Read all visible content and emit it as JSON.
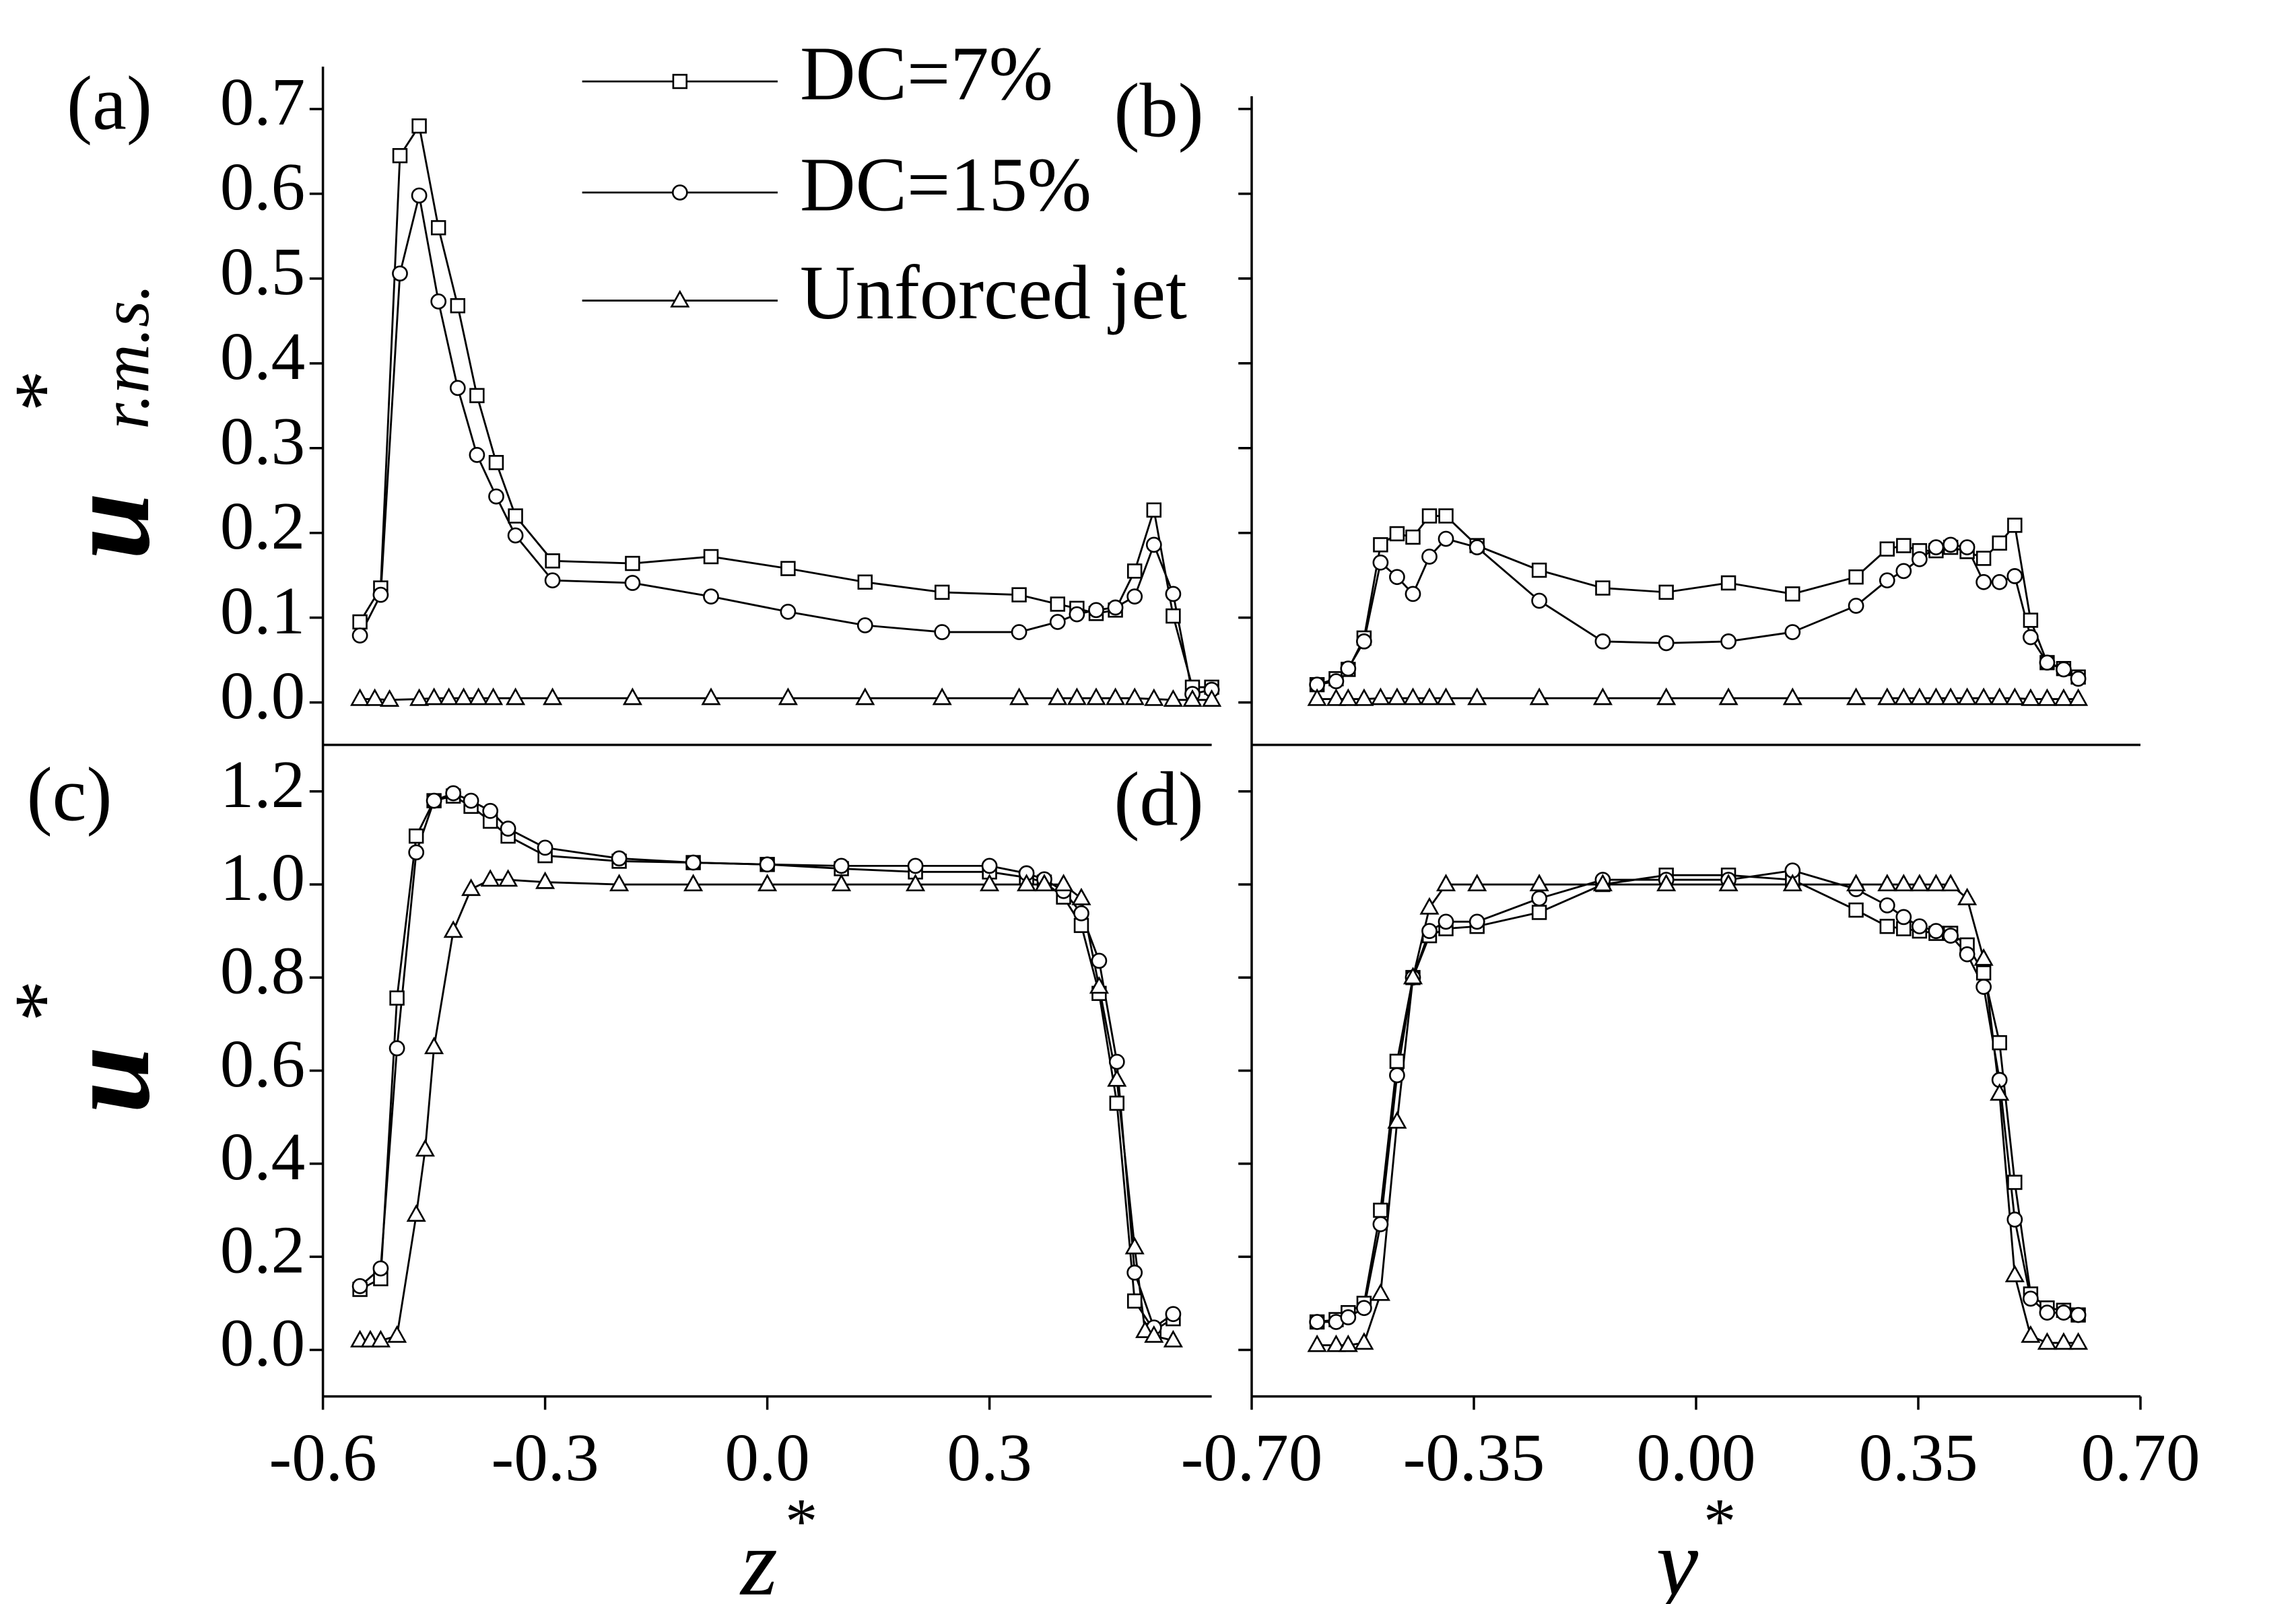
{
  "chart_data": [
    {
      "type": "line",
      "panel_label": "(a)",
      "ylabel": "u",
      "ylabel_sup": "*",
      "ylabel_sub": "r.m.s.",
      "legend": "top-center",
      "xlim": [
        -0.6,
        0.6
      ],
      "ylim": [
        -0.05,
        0.75
      ],
      "yticks": [
        {
          "value": 0,
          "label": "0.0"
        },
        0.1,
        0.2,
        0.3,
        0.4,
        0.5,
        0.6,
        0.7
      ],
      "series": [
        {
          "name": "DC=7%",
          "color": "#000000",
          "marker": "square",
          "x": [
            -0.55,
            -0.522,
            -0.496,
            -0.47,
            -0.444,
            -0.418,
            -0.392,
            -0.366,
            -0.34,
            -0.29,
            -0.182,
            -0.076,
            0.028,
            0.132,
            0.236,
            0.34,
            0.392,
            0.418,
            0.444,
            0.47,
            0.496,
            0.522,
            0.548,
            0.574,
            0.6
          ],
          "values": [
            0.095,
            0.135,
            0.645,
            0.68,
            0.56,
            0.468,
            0.362,
            0.283,
            0.22,
            0.167,
            0.164,
            0.172,
            0.158,
            0.142,
            0.13,
            0.127,
            0.116,
            0.111,
            0.105,
            0.109,
            0.155,
            0.227,
            0.102,
            0.018,
            0.018
          ]
        },
        {
          "name": "DC=15%",
          "color": "#000000",
          "marker": "circle",
          "x": [
            -0.55,
            -0.522,
            -0.496,
            -0.47,
            -0.444,
            -0.418,
            -0.392,
            -0.366,
            -0.34,
            -0.29,
            -0.182,
            -0.076,
            0.028,
            0.132,
            0.236,
            0.34,
            0.392,
            0.418,
            0.444,
            0.47,
            0.496,
            0.522,
            0.548,
            0.574,
            0.6
          ],
          "values": [
            0.079,
            0.127,
            0.506,
            0.598,
            0.473,
            0.371,
            0.292,
            0.243,
            0.197,
            0.144,
            0.141,
            0.125,
            0.107,
            0.091,
            0.083,
            0.083,
            0.095,
            0.104,
            0.109,
            0.112,
            0.125,
            0.186,
            0.128,
            0.01,
            0.015
          ]
        },
        {
          "name": "Unforced jet",
          "color": "#000000",
          "marker": "triangle",
          "x": [
            -0.55,
            -0.53,
            -0.51,
            -0.47,
            -0.45,
            -0.43,
            -0.41,
            -0.39,
            -0.37,
            -0.34,
            -0.29,
            -0.182,
            -0.076,
            0.028,
            0.132,
            0.236,
            0.34,
            0.392,
            0.418,
            0.444,
            0.47,
            0.496,
            0.522,
            0.548,
            0.574,
            0.6
          ],
          "values": [
            0.004,
            0.004,
            0.003,
            0.004,
            0.005,
            0.005,
            0.005,
            0.005,
            0.005,
            0.005,
            0.005,
            0.005,
            0.005,
            0.005,
            0.005,
            0.005,
            0.005,
            0.005,
            0.005,
            0.005,
            0.005,
            0.005,
            0.004,
            0.003,
            0.003,
            0.003
          ]
        }
      ]
    },
    {
      "type": "line",
      "panel_label": "(b)",
      "xlim": [
        -0.7,
        0.7
      ],
      "ylim": [
        -0.05,
        0.715
      ],
      "yticks": [
        0,
        0.1,
        0.2,
        0.3,
        0.4,
        0.5,
        0.6,
        0.7
      ],
      "ytick_labels": false,
      "series": [
        {
          "color": "#000000",
          "marker": "square",
          "x": [
            -0.597,
            -0.567,
            -0.548,
            -0.523,
            -0.497,
            -0.471,
            -0.446,
            -0.42,
            -0.394,
            -0.345,
            -0.247,
            -0.147,
            -0.047,
            0.051,
            0.152,
            0.252,
            0.301,
            0.327,
            0.352,
            0.378,
            0.401,
            0.427,
            0.453,
            0.478,
            0.502,
            0.527,
            0.553,
            0.579,
            0.602
          ],
          "values": [
            0.021,
            0.028,
            0.039,
            0.076,
            0.186,
            0.199,
            0.195,
            0.22,
            0.22,
            0.185,
            0.156,
            0.135,
            0.13,
            0.141,
            0.128,
            0.148,
            0.181,
            0.185,
            0.179,
            0.179,
            0.183,
            0.178,
            0.17,
            0.188,
            0.209,
            0.097,
            0.047,
            0.04,
            0.03
          ]
        },
        {
          "color": "#000000",
          "marker": "circle",
          "x": [
            -0.597,
            -0.567,
            -0.548,
            -0.523,
            -0.497,
            -0.471,
            -0.446,
            -0.42,
            -0.394,
            -0.345,
            -0.247,
            -0.147,
            -0.047,
            0.051,
            0.152,
            0.252,
            0.301,
            0.327,
            0.352,
            0.378,
            0.401,
            0.427,
            0.453,
            0.478,
            0.502,
            0.527,
            0.553,
            0.579,
            0.602
          ],
          "values": [
            0.021,
            0.025,
            0.04,
            0.072,
            0.165,
            0.148,
            0.128,
            0.172,
            0.193,
            0.183,
            0.12,
            0.072,
            0.07,
            0.072,
            0.083,
            0.114,
            0.144,
            0.155,
            0.169,
            0.183,
            0.186,
            0.183,
            0.142,
            0.142,
            0.149,
            0.077,
            0.047,
            0.039,
            0.028
          ]
        },
        {
          "color": "#000000",
          "marker": "triangle",
          "x": [
            -0.597,
            -0.567,
            -0.548,
            -0.523,
            -0.497,
            -0.471,
            -0.446,
            -0.42,
            -0.394,
            -0.345,
            -0.247,
            -0.147,
            -0.047,
            0.051,
            0.152,
            0.252,
            0.301,
            0.327,
            0.352,
            0.378,
            0.401,
            0.427,
            0.453,
            0.478,
            0.502,
            0.527,
            0.553,
            0.579,
            0.602
          ],
          "values": [
            0.004,
            0.004,
            0.004,
            0.004,
            0.005,
            0.005,
            0.005,
            0.005,
            0.005,
            0.005,
            0.005,
            0.005,
            0.005,
            0.005,
            0.005,
            0.005,
            0.005,
            0.005,
            0.005,
            0.005,
            0.005,
            0.005,
            0.005,
            0.005,
            0.005,
            0.004,
            0.004,
            0.004,
            0.004
          ]
        }
      ]
    },
    {
      "type": "line",
      "panel_label": "(c)",
      "ylabel": "u",
      "ylabel_sup": "*",
      "xlabel": "z",
      "xlabel_sup": "*",
      "xlim": [
        -0.6,
        0.6
      ],
      "ylim": [
        -0.1,
        1.3
      ],
      "xticks": [
        -0.6,
        -0.3,
        {
          "value": 0,
          "label": "0.0"
        },
        0.3
      ],
      "yticks": [
        {
          "value": 0,
          "label": "0.0"
        },
        0.2,
        0.4,
        0.6,
        0.8,
        {
          "value": 1,
          "label": "1.0"
        },
        1.2
      ],
      "series": [
        {
          "color": "#000000",
          "marker": "square",
          "x": [
            -0.55,
            -0.522,
            -0.5,
            -0.474,
            -0.45,
            -0.424,
            -0.4,
            -0.374,
            -0.35,
            -0.3,
            -0.2,
            -0.1,
            0,
            0.1,
            0.2,
            0.3,
            0.35,
            0.374,
            0.4,
            0.424,
            0.448,
            0.472,
            0.496,
            0.522,
            0.548
          ],
          "values": [
            0.13,
            0.153,
            0.756,
            1.104,
            1.18,
            1.19,
            1.168,
            1.136,
            1.104,
            1.062,
            1.05,
            1.047,
            1.043,
            1.034,
            1.027,
            1.027,
            1.015,
            1.005,
            0.973,
            0.912,
            0.766,
            0.53,
            0.105,
            0.042,
            0.067
          ]
        },
        {
          "color": "#000000",
          "marker": "circle",
          "x": [
            -0.55,
            -0.522,
            -0.5,
            -0.474,
            -0.45,
            -0.424,
            -0.4,
            -0.374,
            -0.35,
            -0.3,
            -0.2,
            -0.1,
            0,
            0.1,
            0.2,
            0.3,
            0.35,
            0.374,
            0.4,
            0.424,
            0.448,
            0.472,
            0.496,
            0.522,
            0.548
          ],
          "values": [
            0.137,
            0.175,
            0.648,
            1.069,
            1.18,
            1.196,
            1.18,
            1.158,
            1.12,
            1.079,
            1.056,
            1.047,
            1.043,
            1.04,
            1.04,
            1.04,
            1.024,
            1.011,
            0.986,
            0.938,
            0.836,
            0.619,
            0.166,
            0.048,
            0.077
          ]
        },
        {
          "color": "#000000",
          "marker": "triangle",
          "x": [
            -0.55,
            -0.536,
            -0.522,
            -0.5,
            -0.474,
            -0.462,
            -0.45,
            -0.424,
            -0.4,
            -0.374,
            -0.35,
            -0.3,
            -0.2,
            -0.1,
            0,
            0.1,
            0.2,
            0.3,
            0.35,
            0.374,
            0.4,
            0.424,
            0.448,
            0.472,
            0.496,
            0.51,
            0.522,
            0.548
          ],
          "values": [
            0.02,
            0.02,
            0.02,
            0.03,
            0.29,
            0.43,
            0.65,
            0.9,
            0.99,
            1.01,
            1.01,
            1.005,
            1.0,
            1.0,
            1.0,
            1.0,
            1.0,
            1.0,
            1.0,
            1.0,
            1.0,
            0.97,
            0.78,
            0.58,
            0.22,
            0.04,
            0.03,
            0.02
          ]
        }
      ]
    },
    {
      "type": "line",
      "panel_label": "(d)",
      "xlabel": "y",
      "xlabel_sup": "*",
      "xlim": [
        -0.7,
        0.7
      ],
      "ylim": [
        -0.1,
        1.3
      ],
      "xticks": [
        {
          "value": -0.7,
          "label": "-0.70"
        },
        -0.35,
        {
          "value": 0,
          "label": "0.00"
        },
        0.35,
        {
          "value": 0.7,
          "label": "0.70"
        }
      ],
      "yticks": [
        0,
        0.2,
        0.4,
        0.6,
        0.8,
        1,
        1.2
      ],
      "ytick_labels": false,
      "series": [
        {
          "color": "#000000",
          "marker": "square",
          "x": [
            -0.597,
            -0.567,
            -0.548,
            -0.523,
            -0.497,
            -0.471,
            -0.446,
            -0.42,
            -0.394,
            -0.345,
            -0.247,
            -0.147,
            -0.047,
            0.051,
            0.152,
            0.252,
            0.301,
            0.327,
            0.352,
            0.378,
            0.401,
            0.427,
            0.453,
            0.478,
            0.502,
            0.527,
            0.553,
            0.579,
            0.602
          ],
          "values": [
            0.06,
            0.065,
            0.08,
            0.1,
            0.3,
            0.62,
            0.8,
            0.89,
            0.905,
            0.91,
            0.94,
            1.0,
            1.02,
            1.02,
            1.01,
            0.945,
            0.91,
            0.905,
            0.9,
            0.895,
            0.895,
            0.87,
            0.81,
            0.66,
            0.36,
            0.12,
            0.09,
            0.085,
            0.075
          ]
        },
        {
          "color": "#000000",
          "marker": "circle",
          "x": [
            -0.597,
            -0.567,
            -0.548,
            -0.523,
            -0.497,
            -0.471,
            -0.446,
            -0.42,
            -0.394,
            -0.345,
            -0.247,
            -0.147,
            -0.047,
            0.051,
            0.152,
            0.252,
            0.301,
            0.327,
            0.352,
            0.378,
            0.401,
            0.427,
            0.453,
            0.478,
            0.502,
            0.527,
            0.553,
            0.579,
            0.602
          ],
          "values": [
            0.06,
            0.06,
            0.07,
            0.09,
            0.27,
            0.59,
            0.8,
            0.9,
            0.92,
            0.92,
            0.97,
            1.01,
            1.01,
            1.01,
            1.03,
            0.99,
            0.955,
            0.93,
            0.91,
            0.9,
            0.89,
            0.85,
            0.78,
            0.58,
            0.28,
            0.11,
            0.08,
            0.08,
            0.075
          ]
        },
        {
          "color": "#000000",
          "marker": "triangle",
          "x": [
            -0.597,
            -0.567,
            -0.548,
            -0.523,
            -0.497,
            -0.471,
            -0.446,
            -0.42,
            -0.394,
            -0.345,
            -0.247,
            -0.147,
            -0.047,
            0.051,
            0.152,
            0.252,
            0.301,
            0.327,
            0.352,
            0.378,
            0.401,
            0.427,
            0.453,
            0.478,
            0.502,
            0.527,
            0.553,
            0.579,
            0.602
          ],
          "values": [
            0.01,
            0.01,
            0.01,
            0.015,
            0.12,
            0.49,
            0.8,
            0.95,
            1.0,
            1.0,
            1.0,
            1.0,
            1.0,
            1.0,
            1.0,
            1.0,
            1.0,
            1.0,
            1.0,
            1.0,
            1.0,
            0.97,
            0.84,
            0.55,
            0.16,
            0.03,
            0.015,
            0.015,
            0.015
          ]
        }
      ]
    }
  ]
}
